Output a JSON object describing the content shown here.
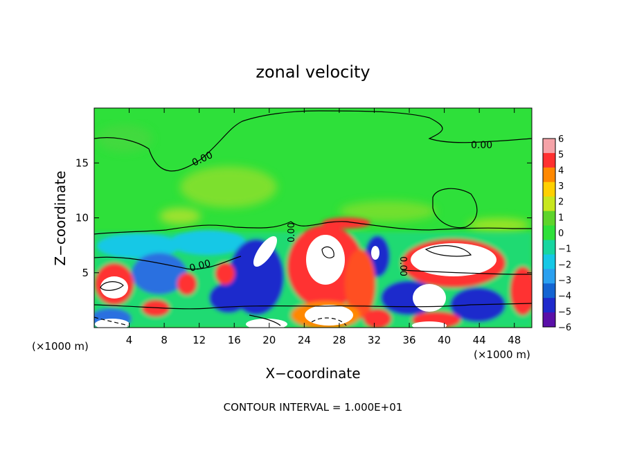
{
  "chart_data": {
    "type": "heatmap",
    "title": "zonal velocity",
    "xlabel": "X−coordinate",
    "ylabel": "Z−coordinate",
    "x_unit_left": "(×1000 m)",
    "x_unit_right": "(×1000 m)",
    "xlim": [
      0,
      50
    ],
    "ylim": [
      0,
      20
    ],
    "x_ticks": [
      4,
      8,
      12,
      16,
      20,
      24,
      28,
      32,
      36,
      40,
      44,
      48
    ],
    "y_ticks": [
      5,
      10,
      15
    ],
    "contour_labels": [
      "0.00",
      "0.00",
      "0.00",
      "0.00",
      "0.00"
    ],
    "colorbar": {
      "min": -6,
      "max": 6,
      "ticks": [
        6,
        5,
        4,
        3,
        2,
        1,
        0,
        -1,
        -2,
        -3,
        -4,
        -5,
        -6
      ],
      "colors": [
        "#f5a3a8",
        "#ff3030",
        "#ff8800",
        "#ffd000",
        "#c8e61e",
        "#5ed42b",
        "#2ee03a",
        "#18d6a0",
        "#16c8e6",
        "#2aa0f0",
        "#1464d2",
        "#1f2acc",
        "#5a10a8"
      ]
    },
    "footer": "CONTOUR INTERVAL = 1.000E+01"
  }
}
